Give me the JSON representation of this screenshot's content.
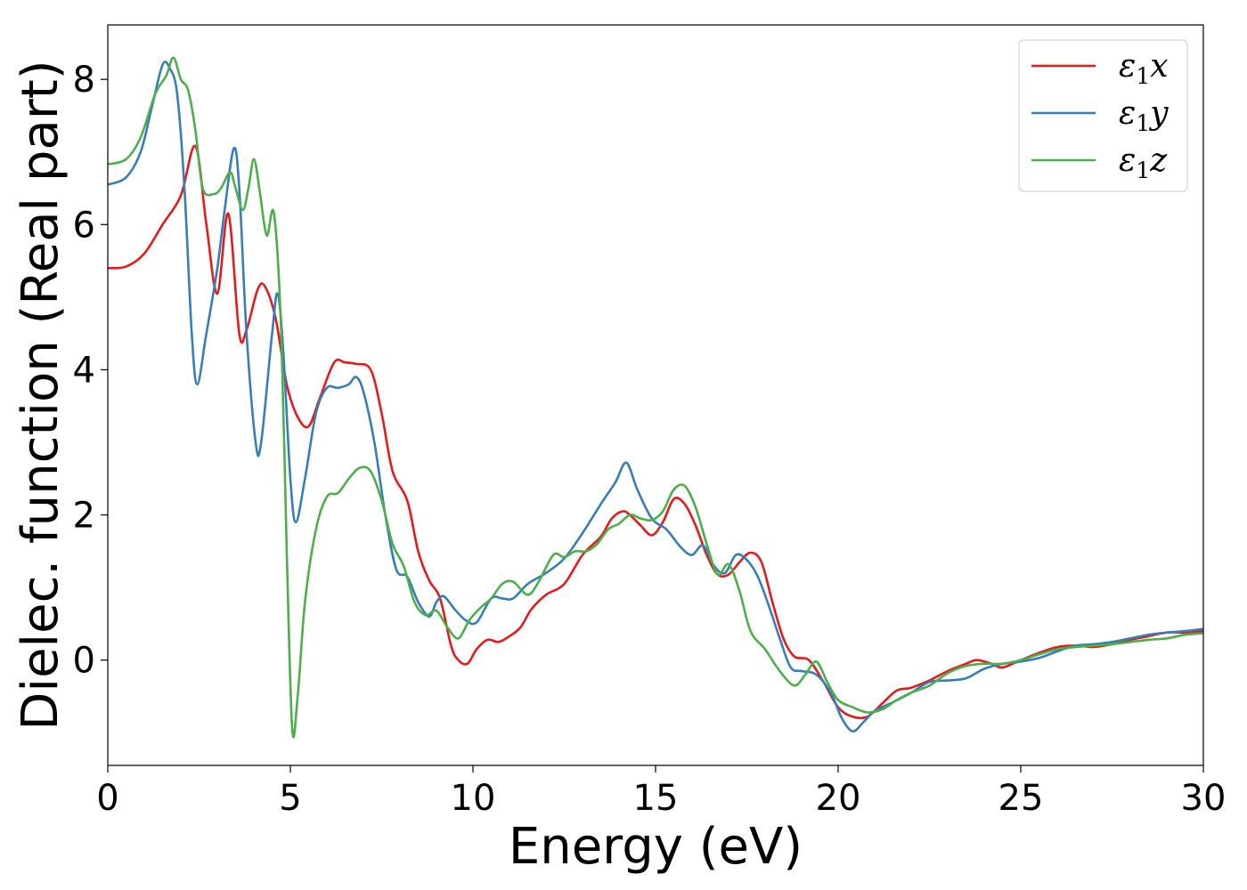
{
  "chart_data": {
    "type": "line",
    "xlabel": "Energy (eV)",
    "ylabel": "Dielec. function (Real part)",
    "xlim": [
      0,
      30
    ],
    "ylim": [
      -1.45,
      8.75
    ],
    "xticks": [
      0,
      5,
      10,
      15,
      20,
      25,
      30
    ],
    "yticks": [
      0,
      2,
      4,
      6,
      8
    ],
    "grid": false,
    "legend_position": "top-right",
    "series": [
      {
        "name": "ε1x",
        "legend_base": "ε",
        "legend_sub": "1",
        "legend_suffix": "x",
        "color": "#e41a1c",
        "points": [
          [
            0,
            5.4
          ],
          [
            0.5,
            5.42
          ],
          [
            1.0,
            5.6
          ],
          [
            1.5,
            6.0
          ],
          [
            2.0,
            6.4
          ],
          [
            2.4,
            7.08
          ],
          [
            2.7,
            6.0
          ],
          [
            3.0,
            5.05
          ],
          [
            3.3,
            6.15
          ],
          [
            3.6,
            4.5
          ],
          [
            3.8,
            4.55
          ],
          [
            4.1,
            5.1
          ],
          [
            4.3,
            5.15
          ],
          [
            4.6,
            4.7
          ],
          [
            4.9,
            3.8
          ],
          [
            5.2,
            3.35
          ],
          [
            5.5,
            3.22
          ],
          [
            5.8,
            3.6
          ],
          [
            6.2,
            4.1
          ],
          [
            6.5,
            4.1
          ],
          [
            6.8,
            4.08
          ],
          [
            7.2,
            4.0
          ],
          [
            7.5,
            3.4
          ],
          [
            7.8,
            2.6
          ],
          [
            8.2,
            2.2
          ],
          [
            8.5,
            1.5
          ],
          [
            8.8,
            1.1
          ],
          [
            9.1,
            0.85
          ],
          [
            9.4,
            0.2
          ],
          [
            9.6,
            0.0
          ],
          [
            9.85,
            -0.05
          ],
          [
            10.1,
            0.15
          ],
          [
            10.4,
            0.28
          ],
          [
            10.7,
            0.25
          ],
          [
            11.0,
            0.33
          ],
          [
            11.3,
            0.45
          ],
          [
            11.6,
            0.7
          ],
          [
            12.0,
            0.9
          ],
          [
            12.5,
            1.05
          ],
          [
            13.0,
            1.45
          ],
          [
            13.5,
            1.7
          ],
          [
            13.8,
            1.95
          ],
          [
            14.1,
            2.05
          ],
          [
            14.3,
            2.0
          ],
          [
            14.6,
            1.85
          ],
          [
            14.9,
            1.72
          ],
          [
            15.2,
            1.9
          ],
          [
            15.5,
            2.22
          ],
          [
            15.8,
            2.15
          ],
          [
            16.1,
            1.85
          ],
          [
            16.4,
            1.45
          ],
          [
            16.7,
            1.18
          ],
          [
            17.0,
            1.18
          ],
          [
            17.3,
            1.35
          ],
          [
            17.6,
            1.48
          ],
          [
            17.9,
            1.35
          ],
          [
            18.2,
            0.8
          ],
          [
            18.5,
            0.3
          ],
          [
            18.8,
            0.05
          ],
          [
            19.2,
            0.0
          ],
          [
            19.6,
            -0.3
          ],
          [
            20.0,
            -0.65
          ],
          [
            20.4,
            -0.78
          ],
          [
            20.8,
            -0.78
          ],
          [
            21.2,
            -0.6
          ],
          [
            21.6,
            -0.42
          ],
          [
            22.0,
            -0.38
          ],
          [
            22.5,
            -0.28
          ],
          [
            23.0,
            -0.15
          ],
          [
            23.5,
            -0.05
          ],
          [
            23.8,
            0.0
          ],
          [
            24.2,
            -0.05
          ],
          [
            24.5,
            -0.1
          ],
          [
            25.0,
            0.0
          ],
          [
            25.5,
            0.1
          ],
          [
            26.0,
            0.18
          ],
          [
            26.5,
            0.2
          ],
          [
            27.0,
            0.18
          ],
          [
            27.5,
            0.22
          ],
          [
            28.0,
            0.28
          ],
          [
            28.5,
            0.33
          ],
          [
            29.0,
            0.38
          ],
          [
            29.5,
            0.38
          ],
          [
            30.0,
            0.4
          ]
        ]
      },
      {
        "name": "ε1y",
        "legend_base": "ε",
        "legend_sub": "1",
        "legend_suffix": "y",
        "color": "#377eb8",
        "points": [
          [
            0,
            6.55
          ],
          [
            0.5,
            6.65
          ],
          [
            0.9,
            7.0
          ],
          [
            1.2,
            7.6
          ],
          [
            1.5,
            8.2
          ],
          [
            1.7,
            8.15
          ],
          [
            1.9,
            7.8
          ],
          [
            2.1,
            6.5
          ],
          [
            2.3,
            4.5
          ],
          [
            2.45,
            3.8
          ],
          [
            2.7,
            4.5
          ],
          [
            3.0,
            5.4
          ],
          [
            3.2,
            6.2
          ],
          [
            3.45,
            7.05
          ],
          [
            3.6,
            6.5
          ],
          [
            3.8,
            4.5
          ],
          [
            4.05,
            3.0
          ],
          [
            4.2,
            3.0
          ],
          [
            4.5,
            4.5
          ],
          [
            4.65,
            5.05
          ],
          [
            4.8,
            4.3
          ],
          [
            5.0,
            2.5
          ],
          [
            5.15,
            1.9
          ],
          [
            5.4,
            2.5
          ],
          [
            5.7,
            3.4
          ],
          [
            6.0,
            3.75
          ],
          [
            6.3,
            3.75
          ],
          [
            6.6,
            3.8
          ],
          [
            6.8,
            3.9
          ],
          [
            7.0,
            3.7
          ],
          [
            7.3,
            3.0
          ],
          [
            7.6,
            2.0
          ],
          [
            7.9,
            1.25
          ],
          [
            8.2,
            1.15
          ],
          [
            8.5,
            0.8
          ],
          [
            8.8,
            0.6
          ],
          [
            9.0,
            0.8
          ],
          [
            9.2,
            0.88
          ],
          [
            9.5,
            0.7
          ],
          [
            9.8,
            0.55
          ],
          [
            10.1,
            0.52
          ],
          [
            10.5,
            0.85
          ],
          [
            10.8,
            0.85
          ],
          [
            11.1,
            0.85
          ],
          [
            11.5,
            1.05
          ],
          [
            12.0,
            1.2
          ],
          [
            12.5,
            1.4
          ],
          [
            13.0,
            1.75
          ],
          [
            13.5,
            2.15
          ],
          [
            13.9,
            2.45
          ],
          [
            14.2,
            2.72
          ],
          [
            14.5,
            2.35
          ],
          [
            14.9,
            1.95
          ],
          [
            15.3,
            1.8
          ],
          [
            15.7,
            1.55
          ],
          [
            16.0,
            1.45
          ],
          [
            16.3,
            1.58
          ],
          [
            16.6,
            1.3
          ],
          [
            16.9,
            1.2
          ],
          [
            17.2,
            1.45
          ],
          [
            17.5,
            1.38
          ],
          [
            17.8,
            1.15
          ],
          [
            18.1,
            0.75
          ],
          [
            18.4,
            0.3
          ],
          [
            18.7,
            -0.1
          ],
          [
            19.0,
            -0.15
          ],
          [
            19.4,
            -0.2
          ],
          [
            19.8,
            -0.45
          ],
          [
            20.1,
            -0.8
          ],
          [
            20.4,
            -0.98
          ],
          [
            20.7,
            -0.85
          ],
          [
            21.0,
            -0.7
          ],
          [
            21.5,
            -0.58
          ],
          [
            22.0,
            -0.45
          ],
          [
            22.5,
            -0.3
          ],
          [
            23.0,
            -0.28
          ],
          [
            23.5,
            -0.25
          ],
          [
            24.0,
            -0.12
          ],
          [
            24.5,
            -0.05
          ],
          [
            25.0,
            -0.02
          ],
          [
            25.5,
            0.03
          ],
          [
            26.0,
            0.12
          ],
          [
            26.5,
            0.2
          ],
          [
            27.0,
            0.22
          ],
          [
            27.5,
            0.25
          ],
          [
            28.0,
            0.3
          ],
          [
            28.5,
            0.35
          ],
          [
            29.0,
            0.38
          ],
          [
            29.5,
            0.4
          ],
          [
            30.0,
            0.43
          ]
        ]
      },
      {
        "name": "ε1z",
        "legend_base": "ε",
        "legend_sub": "1",
        "legend_suffix": "z",
        "color": "#4daf4a",
        "points": [
          [
            0,
            6.83
          ],
          [
            0.5,
            6.9
          ],
          [
            0.9,
            7.2
          ],
          [
            1.3,
            7.8
          ],
          [
            1.6,
            8.05
          ],
          [
            1.8,
            8.3
          ],
          [
            2.0,
            8.0
          ],
          [
            2.2,
            7.85
          ],
          [
            2.4,
            7.3
          ],
          [
            2.6,
            6.5
          ],
          [
            2.9,
            6.42
          ],
          [
            3.1,
            6.5
          ],
          [
            3.35,
            6.72
          ],
          [
            3.5,
            6.5
          ],
          [
            3.7,
            6.2
          ],
          [
            3.85,
            6.5
          ],
          [
            4.0,
            6.9
          ],
          [
            4.15,
            6.5
          ],
          [
            4.35,
            5.85
          ],
          [
            4.55,
            6.15
          ],
          [
            4.75,
            4.5
          ],
          [
            4.9,
            1.5
          ],
          [
            5.05,
            -0.95
          ],
          [
            5.2,
            -0.5
          ],
          [
            5.4,
            0.8
          ],
          [
            5.7,
            1.8
          ],
          [
            6.0,
            2.25
          ],
          [
            6.3,
            2.3
          ],
          [
            6.6,
            2.5
          ],
          [
            6.9,
            2.65
          ],
          [
            7.2,
            2.6
          ],
          [
            7.5,
            2.2
          ],
          [
            7.8,
            1.6
          ],
          [
            8.1,
            1.3
          ],
          [
            8.4,
            0.8
          ],
          [
            8.7,
            0.62
          ],
          [
            9.0,
            0.68
          ],
          [
            9.3,
            0.45
          ],
          [
            9.6,
            0.3
          ],
          [
            9.9,
            0.55
          ],
          [
            10.2,
            0.72
          ],
          [
            10.5,
            0.85
          ],
          [
            10.8,
            1.05
          ],
          [
            11.1,
            1.08
          ],
          [
            11.5,
            0.9
          ],
          [
            11.8,
            1.08
          ],
          [
            12.2,
            1.45
          ],
          [
            12.5,
            1.42
          ],
          [
            12.8,
            1.5
          ],
          [
            13.1,
            1.5
          ],
          [
            13.4,
            1.6
          ],
          [
            13.7,
            1.8
          ],
          [
            14.0,
            1.88
          ],
          [
            14.3,
            2.0
          ],
          [
            14.6,
            1.95
          ],
          [
            14.9,
            1.93
          ],
          [
            15.2,
            2.05
          ],
          [
            15.5,
            2.35
          ],
          [
            15.8,
            2.4
          ],
          [
            16.1,
            2.1
          ],
          [
            16.4,
            1.6
          ],
          [
            16.7,
            1.18
          ],
          [
            17.0,
            1.32
          ],
          [
            17.3,
            0.95
          ],
          [
            17.6,
            0.4
          ],
          [
            18.0,
            0.15
          ],
          [
            18.4,
            -0.15
          ],
          [
            18.8,
            -0.35
          ],
          [
            19.1,
            -0.2
          ],
          [
            19.4,
            -0.02
          ],
          [
            19.7,
            -0.3
          ],
          [
            20.0,
            -0.55
          ],
          [
            20.4,
            -0.65
          ],
          [
            20.8,
            -0.72
          ],
          [
            21.2,
            -0.68
          ],
          [
            21.6,
            -0.55
          ],
          [
            22.0,
            -0.45
          ],
          [
            22.5,
            -0.35
          ],
          [
            23.0,
            -0.18
          ],
          [
            23.5,
            -0.08
          ],
          [
            24.0,
            -0.05
          ],
          [
            24.5,
            -0.05
          ],
          [
            25.0,
            0.0
          ],
          [
            25.5,
            0.08
          ],
          [
            26.0,
            0.15
          ],
          [
            26.5,
            0.18
          ],
          [
            27.0,
            0.2
          ],
          [
            27.5,
            0.22
          ],
          [
            28.0,
            0.25
          ],
          [
            28.5,
            0.28
          ],
          [
            29.0,
            0.3
          ],
          [
            29.5,
            0.35
          ],
          [
            30.0,
            0.37
          ]
        ]
      }
    ]
  }
}
